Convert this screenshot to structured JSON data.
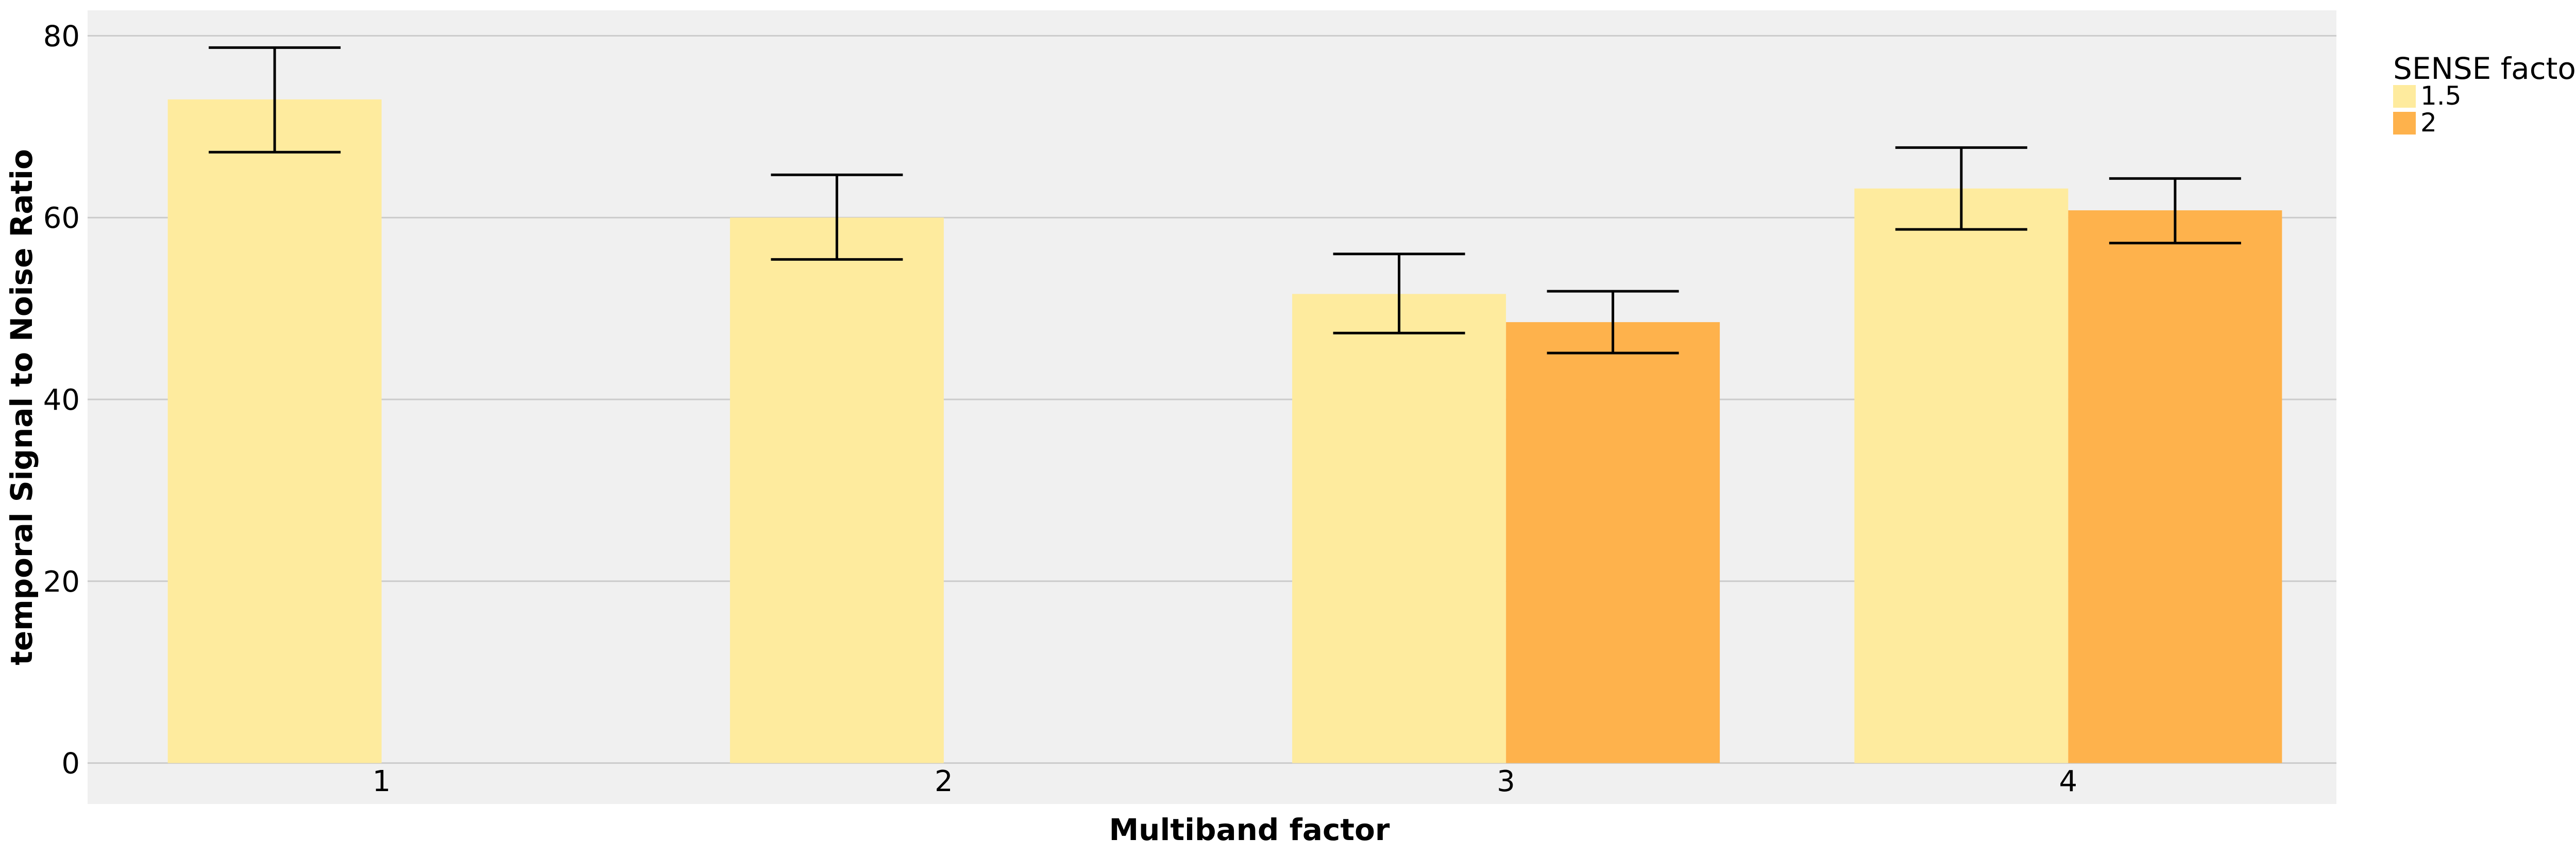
{
  "chart_data": {
    "type": "bar",
    "xlabel": "Multiband factor",
    "ylabel": "temporal Signal to Noise Ratio",
    "categories": [
      "1",
      "2",
      "3",
      "4"
    ],
    "ylim": [
      -4.5,
      82.8
    ],
    "yticks": [
      0,
      20,
      40,
      60,
      80
    ],
    "grid": true,
    "legend": {
      "title": "SENSE factor",
      "position": "top-right"
    },
    "series": [
      {
        "name": "1.5",
        "color": "#FEEB9E",
        "values": [
          73.0,
          60.0,
          51.6,
          63.2
        ],
        "err_low": [
          67.2,
          55.4,
          47.3,
          58.7
        ],
        "err_high": [
          78.7,
          64.7,
          56.0,
          67.7
        ]
      },
      {
        "name": "2",
        "color": "#FEB24C",
        "values": [
          null,
          null,
          48.5,
          60.8
        ],
        "err_low": [
          null,
          null,
          45.1,
          57.2
        ],
        "err_high": [
          null,
          null,
          51.9,
          64.3
        ]
      }
    ]
  }
}
